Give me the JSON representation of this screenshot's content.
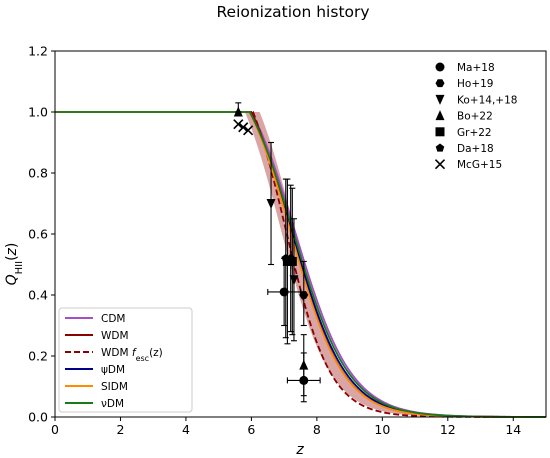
{
  "chart_data": {
    "type": "line",
    "title": "Reionization history",
    "xlabel": "z",
    "ylabel": "Q_HII(z)",
    "xlim": [
      0,
      15
    ],
    "ylim": [
      0,
      1.2
    ],
    "xticks": [
      "0",
      "2",
      "4",
      "6",
      "8",
      "10",
      "12",
      "14"
    ],
    "yticks": [
      "0.0",
      "0.2",
      "0.4",
      "0.6",
      "0.8",
      "1.0",
      "1.2"
    ],
    "grid": false,
    "legend_lines_position": "lower-left",
    "legend_markers_position": "top-right",
    "series": [
      {
        "name": "CDM",
        "color": "#a64ec8",
        "dashed": false,
        "z_end": 6.0,
        "z50": 7.35,
        "width": 0.85
      },
      {
        "name": "WDM",
        "color": "#8b0000",
        "dashed": false,
        "z_end": 6.0,
        "z50": 7.2,
        "width": 0.8
      },
      {
        "name": "WDM f_esc(z)",
        "color": "#8b0000",
        "dashed": true,
        "z_end": 6.05,
        "z50": 7.05,
        "width": 0.68
      },
      {
        "name": "ψDM",
        "color": "#00008b",
        "dashed": false,
        "z_end": 5.95,
        "z50": 7.25,
        "width": 0.82
      },
      {
        "name": "SIDM",
        "color": "#ff8c00",
        "dashed": false,
        "z_end": 5.95,
        "z50": 7.2,
        "width": 0.8
      },
      {
        "name": "νDM",
        "color": "#1a7a1a",
        "dashed": false,
        "z_end": 5.95,
        "z50": 7.3,
        "width": 0.84
      }
    ],
    "band": {
      "color": "#c97f7f",
      "z_end": [
        5.8,
        6.25
      ],
      "z50": [
        6.9,
        7.3
      ],
      "width": 0.75
    },
    "observations": [
      {
        "name": "Ma+18",
        "marker": "circle",
        "points": [
          {
            "z": 7.0,
            "q": 0.41,
            "zerr": 0.5,
            "qerr": [
              0.11,
              0.11
            ]
          },
          {
            "z": 7.6,
            "q": 0.12,
            "zerr": 0.5,
            "qerr": [
              0.07,
              0.09
            ]
          }
        ]
      },
      {
        "name": "Ho+19",
        "marker": "hexagon",
        "points": [
          {
            "z": 7.6,
            "q": 0.4,
            "zerr": 0,
            "qerr": [
              0.1,
              0.11
            ]
          }
        ]
      },
      {
        "name": "Ko+14,+18",
        "marker": "triangle_down",
        "points": [
          {
            "z": 6.6,
            "q": 0.7,
            "zerr": 0,
            "qerr": [
              0.2,
              0.2
            ]
          },
          {
            "z": 7.3,
            "q": 0.45,
            "zerr": 0,
            "qerr": [
              0.2,
              0.2
            ]
          }
        ]
      },
      {
        "name": "Bo+22",
        "marker": "triangle_up",
        "points": [
          {
            "z": 5.6,
            "q": 1.0,
            "zerr": 0,
            "qerr": [
              0.0,
              0.03
            ]
          },
          {
            "z": 7.6,
            "q": 0.17,
            "zerr": 0,
            "qerr": [
              0.1,
              0.1
            ]
          }
        ]
      },
      {
        "name": "Gr+22",
        "marker": "square",
        "points": [
          {
            "z": 7.1,
            "q": 0.51,
            "zerr": 0,
            "qerr": [
              0.27,
              0.27
            ]
          },
          {
            "z": 7.25,
            "q": 0.51,
            "zerr": 0,
            "qerr": [
              0.24,
              0.24
            ]
          }
        ]
      },
      {
        "name": "Da+18",
        "marker": "pentagon",
        "points": [
          {
            "z": 7.05,
            "q": 0.52,
            "zerr": 0,
            "qerr": [
              0.26,
              0.26
            ]
          },
          {
            "z": 7.2,
            "q": 0.52,
            "zerr": 0,
            "qerr": [
              0.24,
              0.24
            ]
          }
        ]
      },
      {
        "name": "McG+15",
        "marker": "x",
        "points": [
          {
            "z": 5.6,
            "q": 0.96,
            "zerr": 0,
            "qerr": [
              0,
              0
            ]
          },
          {
            "z": 5.75,
            "q": 0.95,
            "zerr": 0,
            "qerr": [
              0,
              0
            ]
          },
          {
            "z": 5.9,
            "q": 0.94,
            "zerr": 0,
            "qerr": [
              0,
              0
            ]
          }
        ]
      }
    ]
  }
}
